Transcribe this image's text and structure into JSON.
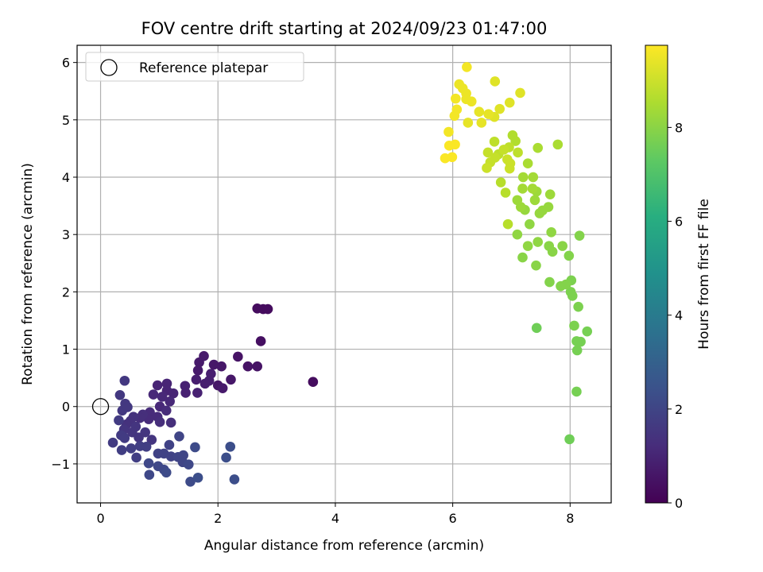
{
  "chart_data": {
    "type": "scatter",
    "title": "FOV centre drift starting at 2024/09/23 01:47:00",
    "xlabel": "Angular distance from reference (arcmin)",
    "ylabel": "Rotation from reference (arcmin)",
    "xlim": [
      -0.4,
      8.7
    ],
    "ylim": [
      -1.68,
      6.3
    ],
    "xticks": [
      0,
      2,
      4,
      6,
      8
    ],
    "yticks": [
      -1,
      0,
      1,
      2,
      3,
      4,
      5,
      6
    ],
    "xtick_labels": [
      "0",
      "2",
      "4",
      "6",
      "8"
    ],
    "ytick_labels": [
      "−1",
      "0",
      "1",
      "2",
      "3",
      "4",
      "5",
      "6"
    ],
    "grid": true,
    "legend": {
      "position": "top-left",
      "entries": [
        "Reference platepar"
      ]
    },
    "reference_point": {
      "x": 0,
      "y": 0,
      "marker": "open-circle"
    },
    "colorbar": {
      "label": "Hours from first FF file",
      "colormap": "viridis",
      "range": [
        0,
        9.75
      ],
      "ticks": [
        0,
        2,
        4,
        6,
        8
      ],
      "tick_labels": [
        "0",
        "2",
        "4",
        "6",
        "8"
      ]
    },
    "points": [
      {
        "x": 3.62,
        "y": 0.43,
        "c": 0.3
      },
      {
        "x": 2.67,
        "y": 1.71,
        "c": 0.3
      },
      {
        "x": 2.77,
        "y": 1.7,
        "c": 0.3
      },
      {
        "x": 2.85,
        "y": 1.7,
        "c": 0.3
      },
      {
        "x": 2.73,
        "y": 1.14,
        "c": 0.4
      },
      {
        "x": 2.34,
        "y": 0.87,
        "c": 0.5
      },
      {
        "x": 2.51,
        "y": 0.7,
        "c": 0.5
      },
      {
        "x": 2.67,
        "y": 0.7,
        "c": 0.5
      },
      {
        "x": 2.22,
        "y": 0.47,
        "c": 0.6
      },
      {
        "x": 2.06,
        "y": 0.7,
        "c": 0.6
      },
      {
        "x": 1.93,
        "y": 0.73,
        "c": 0.6
      },
      {
        "x": 2.0,
        "y": 0.37,
        "c": 0.6
      },
      {
        "x": 2.08,
        "y": 0.32,
        "c": 0.7
      },
      {
        "x": 1.76,
        "y": 0.88,
        "c": 0.7
      },
      {
        "x": 1.68,
        "y": 0.77,
        "c": 0.7
      },
      {
        "x": 1.66,
        "y": 0.63,
        "c": 0.7
      },
      {
        "x": 1.88,
        "y": 0.57,
        "c": 0.8
      },
      {
        "x": 1.85,
        "y": 0.45,
        "c": 0.8
      },
      {
        "x": 1.78,
        "y": 0.4,
        "c": 0.8
      },
      {
        "x": 1.63,
        "y": 0.47,
        "c": 0.8
      },
      {
        "x": 1.65,
        "y": 0.24,
        "c": 0.9
      },
      {
        "x": 1.44,
        "y": 0.36,
        "c": 0.9
      },
      {
        "x": 1.45,
        "y": 0.24,
        "c": 0.9
      },
      {
        "x": 1.13,
        "y": 0.4,
        "c": 1.0
      },
      {
        "x": 0.97,
        "y": 0.37,
        "c": 1.0
      },
      {
        "x": 1.13,
        "y": 0.28,
        "c": 1.0
      },
      {
        "x": 1.24,
        "y": 0.23,
        "c": 1.0
      },
      {
        "x": 1.05,
        "y": 0.17,
        "c": 1.1
      },
      {
        "x": 1.18,
        "y": 0.09,
        "c": 1.1
      },
      {
        "x": 1.01,
        "y": 0.0,
        "c": 1.1
      },
      {
        "x": 0.9,
        "y": 0.21,
        "c": 1.1
      },
      {
        "x": 1.12,
        "y": -0.07,
        "c": 1.2
      },
      {
        "x": 0.84,
        "y": -0.1,
        "c": 1.2
      },
      {
        "x": 0.97,
        "y": -0.18,
        "c": 1.2
      },
      {
        "x": 0.82,
        "y": -0.22,
        "c": 1.2
      },
      {
        "x": 1.01,
        "y": -0.27,
        "c": 1.3
      },
      {
        "x": 1.2,
        "y": -0.28,
        "c": 1.3
      },
      {
        "x": 0.72,
        "y": -0.14,
        "c": 1.3
      },
      {
        "x": 0.67,
        "y": -0.2,
        "c": 1.3
      },
      {
        "x": 0.56,
        "y": -0.18,
        "c": 1.4
      },
      {
        "x": 0.51,
        "y": -0.25,
        "c": 1.4
      },
      {
        "x": 0.44,
        "y": -0.31,
        "c": 1.4
      },
      {
        "x": 0.4,
        "y": -0.4,
        "c": 1.5
      },
      {
        "x": 0.6,
        "y": -0.35,
        "c": 1.5
      },
      {
        "x": 0.54,
        "y": -0.45,
        "c": 1.5
      },
      {
        "x": 0.65,
        "y": -0.54,
        "c": 1.5
      },
      {
        "x": 0.76,
        "y": -0.45,
        "c": 1.5
      },
      {
        "x": 0.87,
        "y": -0.58,
        "c": 1.5
      },
      {
        "x": 0.41,
        "y": 0.45,
        "c": 1.6
      },
      {
        "x": 0.33,
        "y": 0.2,
        "c": 1.6
      },
      {
        "x": 0.42,
        "y": 0.05,
        "c": 1.6
      },
      {
        "x": 0.37,
        "y": -0.07,
        "c": 1.6
      },
      {
        "x": 0.46,
        "y": -0.01,
        "c": 1.6
      },
      {
        "x": 0.31,
        "y": -0.24,
        "c": 1.7
      },
      {
        "x": 0.35,
        "y": -0.5,
        "c": 1.7
      },
      {
        "x": 0.41,
        "y": -0.55,
        "c": 1.7
      },
      {
        "x": 0.21,
        "y": -0.63,
        "c": 1.7
      },
      {
        "x": 0.36,
        "y": -0.76,
        "c": 1.8
      },
      {
        "x": 0.52,
        "y": -0.73,
        "c": 1.8
      },
      {
        "x": 0.61,
        "y": -0.89,
        "c": 1.8
      },
      {
        "x": 0.67,
        "y": -0.69,
        "c": 1.8
      },
      {
        "x": 0.78,
        "y": -0.7,
        "c": 1.8
      },
      {
        "x": 0.98,
        "y": -0.82,
        "c": 1.9
      },
      {
        "x": 1.08,
        "y": -0.82,
        "c": 1.9
      },
      {
        "x": 1.2,
        "y": -0.87,
        "c": 1.9
      },
      {
        "x": 1.17,
        "y": -0.67,
        "c": 1.9
      },
      {
        "x": 1.34,
        "y": -0.52,
        "c": 2.0
      },
      {
        "x": 1.32,
        "y": -0.88,
        "c": 2.0
      },
      {
        "x": 1.41,
        "y": -0.85,
        "c": 2.0
      },
      {
        "x": 1.4,
        "y": -0.97,
        "c": 2.0
      },
      {
        "x": 1.5,
        "y": -1.01,
        "c": 2.1
      },
      {
        "x": 0.82,
        "y": -0.99,
        "c": 2.1
      },
      {
        "x": 0.83,
        "y": -1.19,
        "c": 2.1
      },
      {
        "x": 0.98,
        "y": -1.04,
        "c": 2.1
      },
      {
        "x": 1.08,
        "y": -1.1,
        "c": 2.1
      },
      {
        "x": 1.12,
        "y": -1.15,
        "c": 2.2
      },
      {
        "x": 1.61,
        "y": -0.71,
        "c": 2.2
      },
      {
        "x": 1.53,
        "y": -1.31,
        "c": 2.2
      },
      {
        "x": 1.66,
        "y": -1.24,
        "c": 2.3
      },
      {
        "x": 2.14,
        "y": -0.89,
        "c": 2.3
      },
      {
        "x": 2.21,
        "y": -0.7,
        "c": 2.3
      },
      {
        "x": 2.28,
        "y": -1.27,
        "c": 2.3
      },
      {
        "x": 7.43,
        "y": 1.37,
        "c": 7.6
      },
      {
        "x": 7.99,
        "y": -0.57,
        "c": 7.6
      },
      {
        "x": 8.11,
        "y": 0.26,
        "c": 7.7
      },
      {
        "x": 8.12,
        "y": 0.98,
        "c": 7.7
      },
      {
        "x": 8.11,
        "y": 1.14,
        "c": 7.7
      },
      {
        "x": 8.18,
        "y": 1.13,
        "c": 7.7
      },
      {
        "x": 8.29,
        "y": 1.31,
        "c": 7.7
      },
      {
        "x": 8.07,
        "y": 1.41,
        "c": 7.8
      },
      {
        "x": 8.14,
        "y": 1.74,
        "c": 7.8
      },
      {
        "x": 8.04,
        "y": 1.93,
        "c": 7.8
      },
      {
        "x": 8.01,
        "y": 2.0,
        "c": 7.8
      },
      {
        "x": 8.02,
        "y": 2.2,
        "c": 7.8
      },
      {
        "x": 7.84,
        "y": 2.1,
        "c": 7.9
      },
      {
        "x": 7.93,
        "y": 2.13,
        "c": 7.9
      },
      {
        "x": 7.65,
        "y": 2.17,
        "c": 7.9
      },
      {
        "x": 7.98,
        "y": 2.63,
        "c": 7.9
      },
      {
        "x": 8.16,
        "y": 2.98,
        "c": 7.9
      },
      {
        "x": 7.87,
        "y": 2.8,
        "c": 8.0
      },
      {
        "x": 7.7,
        "y": 2.7,
        "c": 8.0
      },
      {
        "x": 7.64,
        "y": 2.8,
        "c": 8.0
      },
      {
        "x": 7.42,
        "y": 2.46,
        "c": 8.0
      },
      {
        "x": 7.19,
        "y": 2.6,
        "c": 8.0
      },
      {
        "x": 7.28,
        "y": 2.8,
        "c": 8.1
      },
      {
        "x": 7.45,
        "y": 2.87,
        "c": 8.1
      },
      {
        "x": 7.68,
        "y": 3.04,
        "c": 8.1
      },
      {
        "x": 7.1,
        "y": 3.0,
        "c": 8.1
      },
      {
        "x": 7.31,
        "y": 3.18,
        "c": 8.1
      },
      {
        "x": 7.48,
        "y": 3.37,
        "c": 8.2
      },
      {
        "x": 7.53,
        "y": 3.42,
        "c": 8.2
      },
      {
        "x": 7.63,
        "y": 3.48,
        "c": 8.2
      },
      {
        "x": 7.23,
        "y": 3.43,
        "c": 8.2
      },
      {
        "x": 7.16,
        "y": 3.48,
        "c": 8.3
      },
      {
        "x": 7.1,
        "y": 3.6,
        "c": 8.3
      },
      {
        "x": 7.4,
        "y": 3.6,
        "c": 8.3
      },
      {
        "x": 7.43,
        "y": 3.75,
        "c": 8.3
      },
      {
        "x": 7.66,
        "y": 3.7,
        "c": 8.3
      },
      {
        "x": 7.36,
        "y": 3.8,
        "c": 8.4
      },
      {
        "x": 7.19,
        "y": 3.8,
        "c": 8.4
      },
      {
        "x": 7.2,
        "y": 4.0,
        "c": 8.4
      },
      {
        "x": 7.37,
        "y": 4.0,
        "c": 8.4
      },
      {
        "x": 7.28,
        "y": 4.24,
        "c": 8.5
      },
      {
        "x": 7.45,
        "y": 4.51,
        "c": 8.5
      },
      {
        "x": 7.79,
        "y": 4.57,
        "c": 8.5
      },
      {
        "x": 7.02,
        "y": 4.73,
        "c": 8.6
      },
      {
        "x": 7.07,
        "y": 4.63,
        "c": 8.6
      },
      {
        "x": 6.94,
        "y": 3.18,
        "c": 8.7
      },
      {
        "x": 6.9,
        "y": 3.73,
        "c": 8.7
      },
      {
        "x": 6.82,
        "y": 3.91,
        "c": 8.7
      },
      {
        "x": 7.11,
        "y": 4.43,
        "c": 8.8
      },
      {
        "x": 6.71,
        "y": 4.62,
        "c": 8.8
      },
      {
        "x": 6.78,
        "y": 4.4,
        "c": 8.8
      },
      {
        "x": 6.96,
        "y": 4.52,
        "c": 8.8
      },
      {
        "x": 6.87,
        "y": 4.48,
        "c": 8.9
      },
      {
        "x": 6.6,
        "y": 4.43,
        "c": 8.9
      },
      {
        "x": 6.64,
        "y": 4.26,
        "c": 8.9
      },
      {
        "x": 6.72,
        "y": 4.34,
        "c": 8.9
      },
      {
        "x": 6.93,
        "y": 4.31,
        "c": 9.0
      },
      {
        "x": 6.98,
        "y": 4.24,
        "c": 9.0
      },
      {
        "x": 6.58,
        "y": 4.16,
        "c": 9.0
      },
      {
        "x": 6.97,
        "y": 4.15,
        "c": 9.0
      },
      {
        "x": 6.72,
        "y": 5.67,
        "c": 9.3
      },
      {
        "x": 7.15,
        "y": 5.47,
        "c": 9.3
      },
      {
        "x": 6.97,
        "y": 5.3,
        "c": 9.3
      },
      {
        "x": 6.8,
        "y": 5.19,
        "c": 9.3
      },
      {
        "x": 6.71,
        "y": 5.05,
        "c": 9.3
      },
      {
        "x": 6.61,
        "y": 5.1,
        "c": 9.4
      },
      {
        "x": 6.45,
        "y": 5.14,
        "c": 9.4
      },
      {
        "x": 6.49,
        "y": 4.95,
        "c": 9.4
      },
      {
        "x": 6.26,
        "y": 4.95,
        "c": 9.4
      },
      {
        "x": 6.32,
        "y": 5.32,
        "c": 9.5
      },
      {
        "x": 6.23,
        "y": 5.36,
        "c": 9.5
      },
      {
        "x": 6.23,
        "y": 5.46,
        "c": 9.5
      },
      {
        "x": 6.17,
        "y": 5.55,
        "c": 9.5
      },
      {
        "x": 6.11,
        "y": 5.62,
        "c": 9.5
      },
      {
        "x": 6.24,
        "y": 5.92,
        "c": 9.6
      },
      {
        "x": 6.05,
        "y": 5.37,
        "c": 9.6
      },
      {
        "x": 6.03,
        "y": 5.07,
        "c": 9.6
      },
      {
        "x": 6.07,
        "y": 5.18,
        "c": 9.6
      },
      {
        "x": 5.93,
        "y": 4.79,
        "c": 9.6
      },
      {
        "x": 6.04,
        "y": 4.57,
        "c": 9.7
      },
      {
        "x": 5.94,
        "y": 4.55,
        "c": 9.7
      },
      {
        "x": 5.87,
        "y": 4.33,
        "c": 9.7
      },
      {
        "x": 5.99,
        "y": 4.35,
        "c": 9.7
      }
    ]
  }
}
